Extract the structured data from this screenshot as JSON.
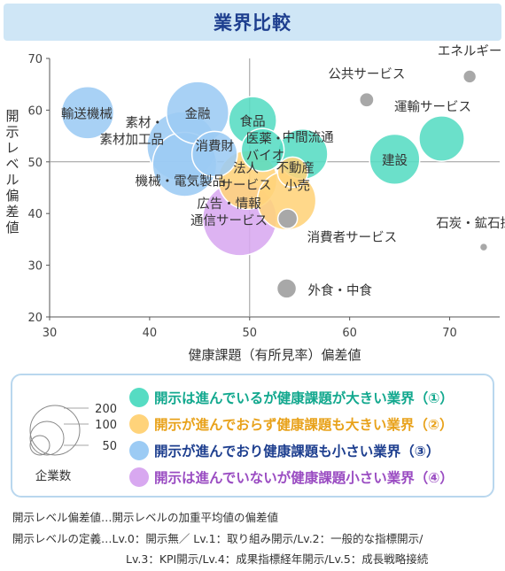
{
  "title": "業界比較",
  "colors": {
    "teal": "#56dcc3",
    "yellow": "#ffd37a",
    "blue": "#9ccbf4",
    "purple": "#d8a8f0",
    "gray": "#a8a8a8",
    "title_bg": "#cfe6f6",
    "title_text": "#1e3f8f"
  },
  "chart_data": {
    "type": "scatter",
    "xlabel": "健康課題（有所見率）偏差値",
    "ylabel": "開示レベル偏差値",
    "xlim": [
      30,
      75
    ],
    "ylim": [
      20,
      70
    ],
    "xticks": [
      30,
      40,
      50,
      60,
      70
    ],
    "yticks": [
      20,
      30,
      40,
      50,
      60,
      70
    ],
    "points": [
      {
        "name": "輸送機械",
        "x": 33.8,
        "y": 59.5,
        "group": "blue",
        "size": 120
      },
      {
        "name": "金融",
        "x": 44.8,
        "y": 59.5,
        "group": "blue",
        "size": 170
      },
      {
        "name": "素材・素材加工品",
        "x": 43.2,
        "y": 53,
        "group": "blue",
        "size": 210
      },
      {
        "name": "消費財",
        "x": 46.5,
        "y": 51.5,
        "group": "blue",
        "size": 90
      },
      {
        "name": "機械・電気製品",
        "x": 43.5,
        "y": 49.5,
        "group": "blue",
        "size": 180
      },
      {
        "name": "食品",
        "x": 50.3,
        "y": 58,
        "group": "teal",
        "size": 100
      },
      {
        "name": "医薬・バイオ",
        "x": 51.3,
        "y": 52.3,
        "group": "teal",
        "size": 80
      },
      {
        "name": "中間流通",
        "x": 55.3,
        "y": 51.5,
        "group": "teal",
        "size": 110
      },
      {
        "name": "建設",
        "x": 64.5,
        "y": 50.5,
        "group": "teal",
        "size": 110
      },
      {
        "name": "運輸サービス",
        "x": 69.2,
        "y": 54.5,
        "group": "teal",
        "size": 90
      },
      {
        "name": "法人サービス",
        "x": 49.8,
        "y": 46.5,
        "group": "yellow",
        "size": 150
      },
      {
        "name": "不動産",
        "x": 54.3,
        "y": 48,
        "group": "yellow",
        "size": 40
      },
      {
        "name": "小売",
        "x": 53.7,
        "y": 42.5,
        "group": "yellow",
        "size": 150
      },
      {
        "name": "広告・情報通信サービス",
        "x": 49,
        "y": 39,
        "group": "purple",
        "size": 240
      },
      {
        "name": "エネルギー",
        "x": 72,
        "y": 66.5,
        "group": "gray",
        "size": 25
      },
      {
        "name": "公共サービス",
        "x": 61.7,
        "y": 62,
        "group": "gray",
        "size": 30
      },
      {
        "name": "消費者サービス",
        "x": 53.8,
        "y": 39,
        "group": "gray",
        "size": 55
      },
      {
        "name": "石炭・鉱石採掘",
        "x": 73.4,
        "y": 33.5,
        "group": "gray",
        "size": 8
      },
      {
        "name": "外食・中食",
        "x": 53.7,
        "y": 25.5,
        "group": "gray",
        "size": 55
      }
    ],
    "legend": {
      "size_title": "企業数",
      "sizes": [
        "200",
        "100",
        "50"
      ],
      "items": [
        {
          "label": "開示は進んでいるが健康課題が大きい業界（①）",
          "color": "#56dcc3",
          "text_color": "#12a88e"
        },
        {
          "label": "開示が進んでおらず健康課題も大きい業界（②）",
          "color": "#ffd37a",
          "text_color": "#e8a21b"
        },
        {
          "label": "開示が進んでおり健康課題も小さい業界（③）",
          "color": "#9ccbf4",
          "text_color": "#1e3f8f"
        },
        {
          "label": "開示は進んでいないが健康課題小さい業界（④）",
          "color": "#d8a8f0",
          "text_color": "#9a4cc2"
        }
      ]
    }
  },
  "notes": {
    "line1": "開示レベル偏差値…開示レベルの加重平均値の偏差値",
    "line2": "開示レベルの定義…Lv.0：開示無／ Lv.1：取り組み開示/Lv.2：一般的な指標開示/",
    "line3": "Lv.3：KPI開示/Lv.4：成果指標経年開示/Lv.5：成長戦略接続"
  }
}
